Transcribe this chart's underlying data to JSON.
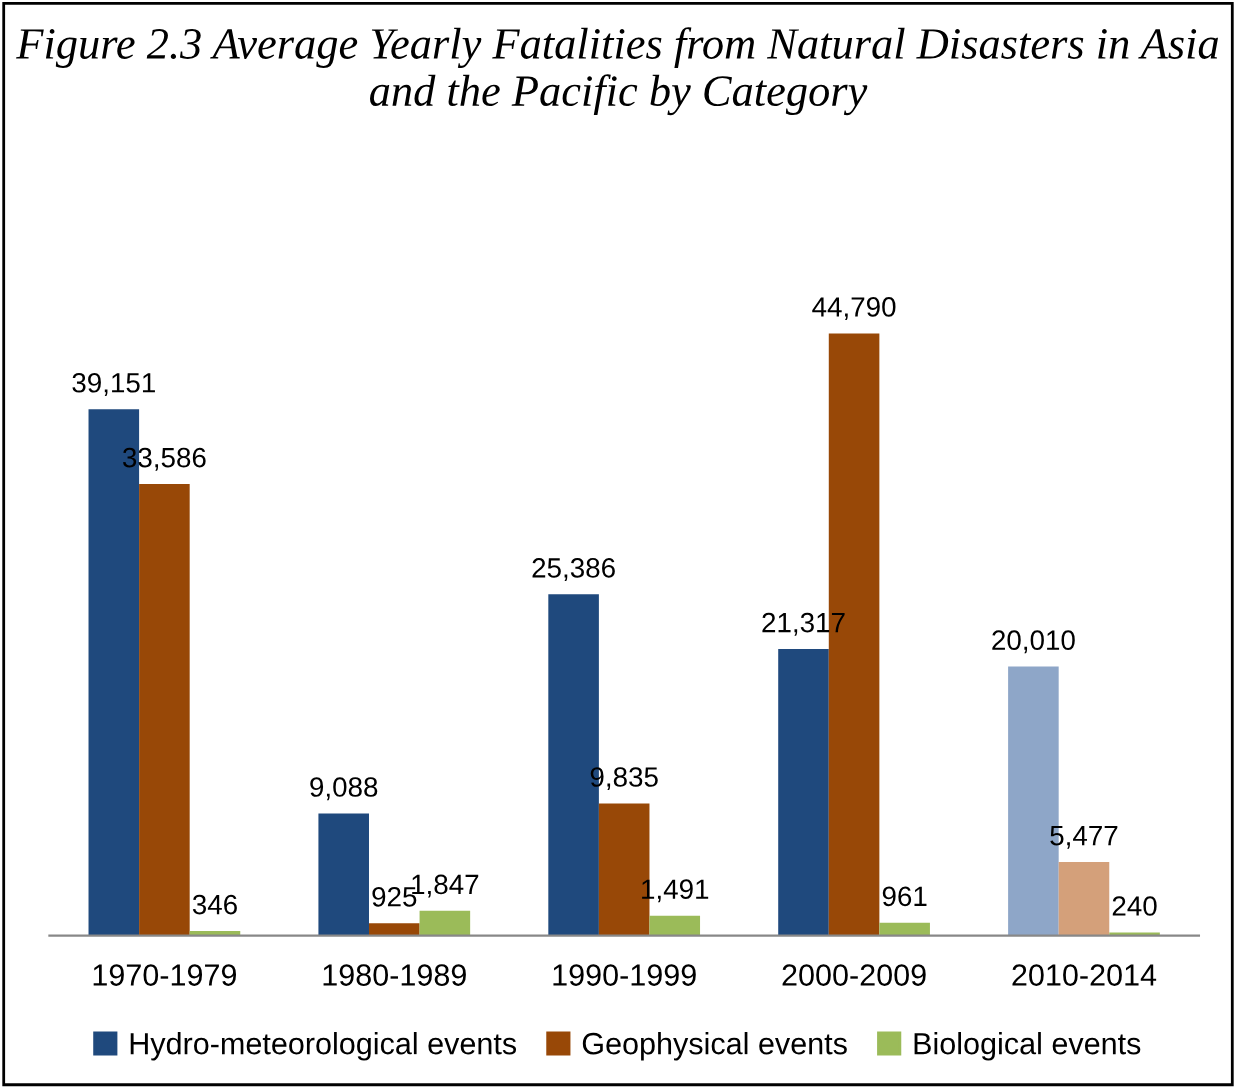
{
  "chart_data": {
    "type": "bar",
    "title": "Figure 2.3 Average Yearly Fatalities from Natural Disasters in Asia and the Pacific by Category",
    "categories": [
      "1970-1979",
      "1980-1989",
      "1990-1999",
      "2000-2009",
      "2010-2014"
    ],
    "series": [
      {
        "name": "Hydro-meteorological events",
        "color": "#1f497d",
        "colors": [
          "#1f497d",
          "#1f497d",
          "#1f497d",
          "#1f497d",
          "#8ea6c8"
        ],
        "values": [
          39151,
          9088,
          25386,
          21317,
          20010
        ],
        "value_labels": [
          "39,151",
          "9,088",
          "25,386",
          "21,317",
          "20,010"
        ]
      },
      {
        "name": "Geophysical events",
        "color": "#984807",
        "colors": [
          "#984807",
          "#984807",
          "#984807",
          "#984807",
          "#d4a07a"
        ],
        "values": [
          33586,
          925,
          9835,
          44790,
          5477
        ],
        "value_labels": [
          "33,586",
          "925",
          "9,835",
          "44,790",
          "5,477"
        ]
      },
      {
        "name": "Biological events",
        "color": "#9bbb59",
        "colors": [
          "#9bbb59",
          "#9bbb59",
          "#9bbb59",
          "#9bbb59",
          "#9bbb59"
        ],
        "values": [
          346,
          1847,
          1491,
          961,
          240
        ],
        "value_labels": [
          "346",
          "1,847",
          "1,491",
          "961",
          "240"
        ]
      }
    ],
    "legend": "bottom"
  }
}
